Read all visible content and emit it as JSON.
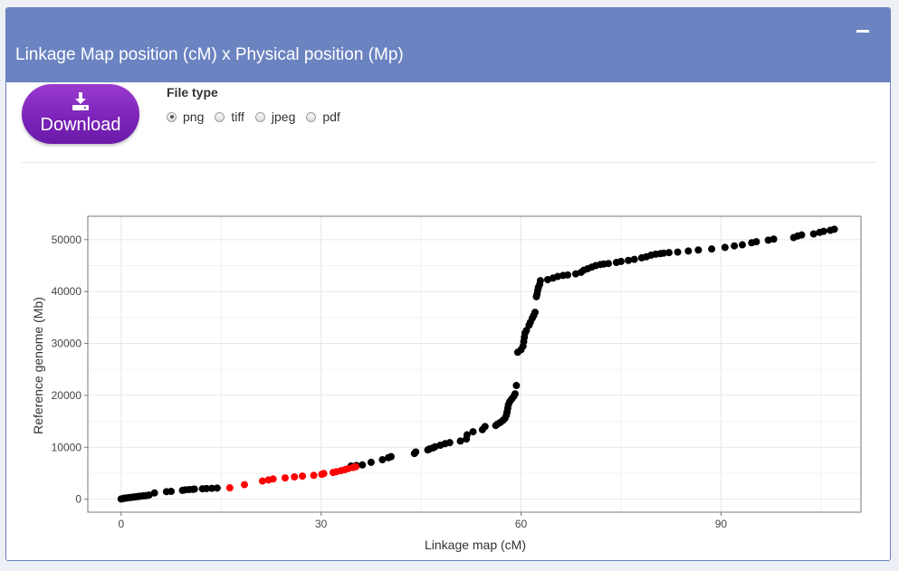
{
  "panel": {
    "title": "Linkage Map position (cM) x Physical position (Mp)",
    "collapse_icon": "minus-icon"
  },
  "download": {
    "label": "Download",
    "icon": "download-icon"
  },
  "file_type": {
    "label": "File type",
    "options": [
      "png",
      "tiff",
      "jpeg",
      "pdf"
    ],
    "selected": "png"
  },
  "colors": {
    "header": "#6b83c1",
    "button": "#7a22b8",
    "point_default": "#000000",
    "point_highlight": "#ff0000"
  },
  "chart_data": {
    "type": "scatter",
    "title": "",
    "xlabel": "Linkage map (cM)",
    "ylabel": "Reference genome (Mb)",
    "xlim": [
      -5,
      111
    ],
    "ylim": [
      -2500,
      54500
    ],
    "xticks": [
      0,
      30,
      60,
      90
    ],
    "yticks": [
      0,
      10000,
      20000,
      30000,
      40000,
      50000
    ],
    "grid": true,
    "legend": "none",
    "series": [
      {
        "color": "#000000",
        "points": [
          [
            0,
            50
          ],
          [
            0.2,
            100
          ],
          [
            0.4,
            150
          ],
          [
            0.6,
            200
          ],
          [
            0.9,
            250
          ],
          [
            1.2,
            300
          ],
          [
            1.5,
            350
          ],
          [
            1.8,
            400
          ],
          [
            2.1,
            450
          ],
          [
            2.4,
            500
          ],
          [
            2.7,
            550
          ],
          [
            3.0,
            600
          ],
          [
            3.4,
            650
          ],
          [
            3.8,
            700
          ],
          [
            4.2,
            800
          ],
          [
            5.0,
            1200
          ],
          [
            6.8,
            1450
          ],
          [
            7.5,
            1500
          ],
          [
            9.2,
            1700
          ],
          [
            9.6,
            1800
          ],
          [
            10.2,
            1850
          ],
          [
            10.8,
            1900
          ],
          [
            11.0,
            1950
          ],
          [
            12.2,
            2000
          ],
          [
            12.8,
            2050
          ],
          [
            13.6,
            2100
          ],
          [
            14.4,
            2150
          ],
          [
            34.5,
            6400
          ],
          [
            35.3,
            6500
          ],
          [
            36.2,
            6600
          ],
          [
            37.5,
            7100
          ],
          [
            39.2,
            7600
          ],
          [
            40.1,
            8000
          ],
          [
            40.5,
            8200
          ],
          [
            44.0,
            8800
          ],
          [
            44.2,
            9100
          ],
          [
            46.0,
            9500
          ],
          [
            46.3,
            9700
          ],
          [
            46.8,
            9900
          ],
          [
            47.1,
            10100
          ],
          [
            47.9,
            10400
          ],
          [
            48.6,
            10700
          ],
          [
            49.3,
            10900
          ],
          [
            50.9,
            11200
          ],
          [
            51.8,
            11600
          ],
          [
            51.9,
            12400
          ],
          [
            52.8,
            13000
          ],
          [
            54.2,
            13400
          ],
          [
            54.6,
            14000
          ],
          [
            56.2,
            14200
          ],
          [
            56.5,
            14500
          ],
          [
            56.9,
            14800
          ],
          [
            57.3,
            15200
          ],
          [
            57.6,
            15600
          ],
          [
            57.8,
            16200
          ],
          [
            57.9,
            16800
          ],
          [
            58.0,
            17500
          ],
          [
            58.1,
            18200
          ],
          [
            58.3,
            18800
          ],
          [
            58.6,
            19300
          ],
          [
            58.9,
            19800
          ],
          [
            59.1,
            20300
          ],
          [
            59.3,
            21900
          ],
          [
            59.5,
            28300
          ],
          [
            60.0,
            28800
          ],
          [
            60.3,
            29500
          ],
          [
            60.4,
            30400
          ],
          [
            60.5,
            31200
          ],
          [
            60.6,
            32000
          ],
          [
            60.8,
            32500
          ],
          [
            61.2,
            33500
          ],
          [
            61.4,
            34100
          ],
          [
            61.7,
            34900
          ],
          [
            61.9,
            35400
          ],
          [
            62.1,
            36000
          ],
          [
            62.3,
            39000
          ],
          [
            62.4,
            39500
          ],
          [
            62.5,
            40200
          ],
          [
            62.6,
            40800
          ],
          [
            62.8,
            41400
          ],
          [
            62.9,
            42100
          ],
          [
            64.0,
            42300
          ],
          [
            64.8,
            42600
          ],
          [
            65.5,
            42900
          ],
          [
            66.3,
            43100
          ],
          [
            67.0,
            43200
          ],
          [
            68.2,
            43400
          ],
          [
            69.0,
            43700
          ],
          [
            69.4,
            44100
          ],
          [
            70.0,
            44400
          ],
          [
            70.6,
            44700
          ],
          [
            71.2,
            45000
          ],
          [
            71.9,
            45200
          ],
          [
            72.4,
            45300
          ],
          [
            73.1,
            45400
          ],
          [
            74.3,
            45600
          ],
          [
            75.0,
            45800
          ],
          [
            76.1,
            46000
          ],
          [
            77.0,
            46200
          ],
          [
            78.1,
            46500
          ],
          [
            78.8,
            46700
          ],
          [
            79.5,
            47000
          ],
          [
            80.2,
            47200
          ],
          [
            80.9,
            47300
          ],
          [
            81.4,
            47400
          ],
          [
            82.2,
            47500
          ],
          [
            83.5,
            47600
          ],
          [
            85.1,
            47800
          ],
          [
            86.6,
            48000
          ],
          [
            88.6,
            48200
          ],
          [
            90.6,
            48500
          ],
          [
            92.0,
            48800
          ],
          [
            93.2,
            49000
          ],
          [
            94.6,
            49400
          ],
          [
            95.3,
            49600
          ],
          [
            97.1,
            49900
          ],
          [
            97.9,
            50100
          ],
          [
            100.9,
            50400
          ],
          [
            101.5,
            50700
          ],
          [
            102.1,
            50900
          ],
          [
            103.9,
            51100
          ],
          [
            104.8,
            51400
          ],
          [
            105.4,
            51600
          ],
          [
            106.4,
            51800
          ],
          [
            107.0,
            52000
          ]
        ]
      },
      {
        "color": "#ff0000",
        "points": [
          [
            16.3,
            2200
          ],
          [
            18.5,
            2800
          ],
          [
            21.2,
            3500
          ],
          [
            22.1,
            3700
          ],
          [
            22.8,
            3900
          ],
          [
            24.6,
            4100
          ],
          [
            26.0,
            4300
          ],
          [
            27.2,
            4450
          ],
          [
            28.9,
            4600
          ],
          [
            30.1,
            4800
          ],
          [
            30.4,
            4950
          ],
          [
            31.8,
            5150
          ],
          [
            32.3,
            5300
          ],
          [
            33.0,
            5500
          ],
          [
            33.6,
            5700
          ],
          [
            34.1,
            5900
          ],
          [
            34.8,
            6100
          ],
          [
            35.2,
            6250
          ]
        ]
      }
    ]
  }
}
